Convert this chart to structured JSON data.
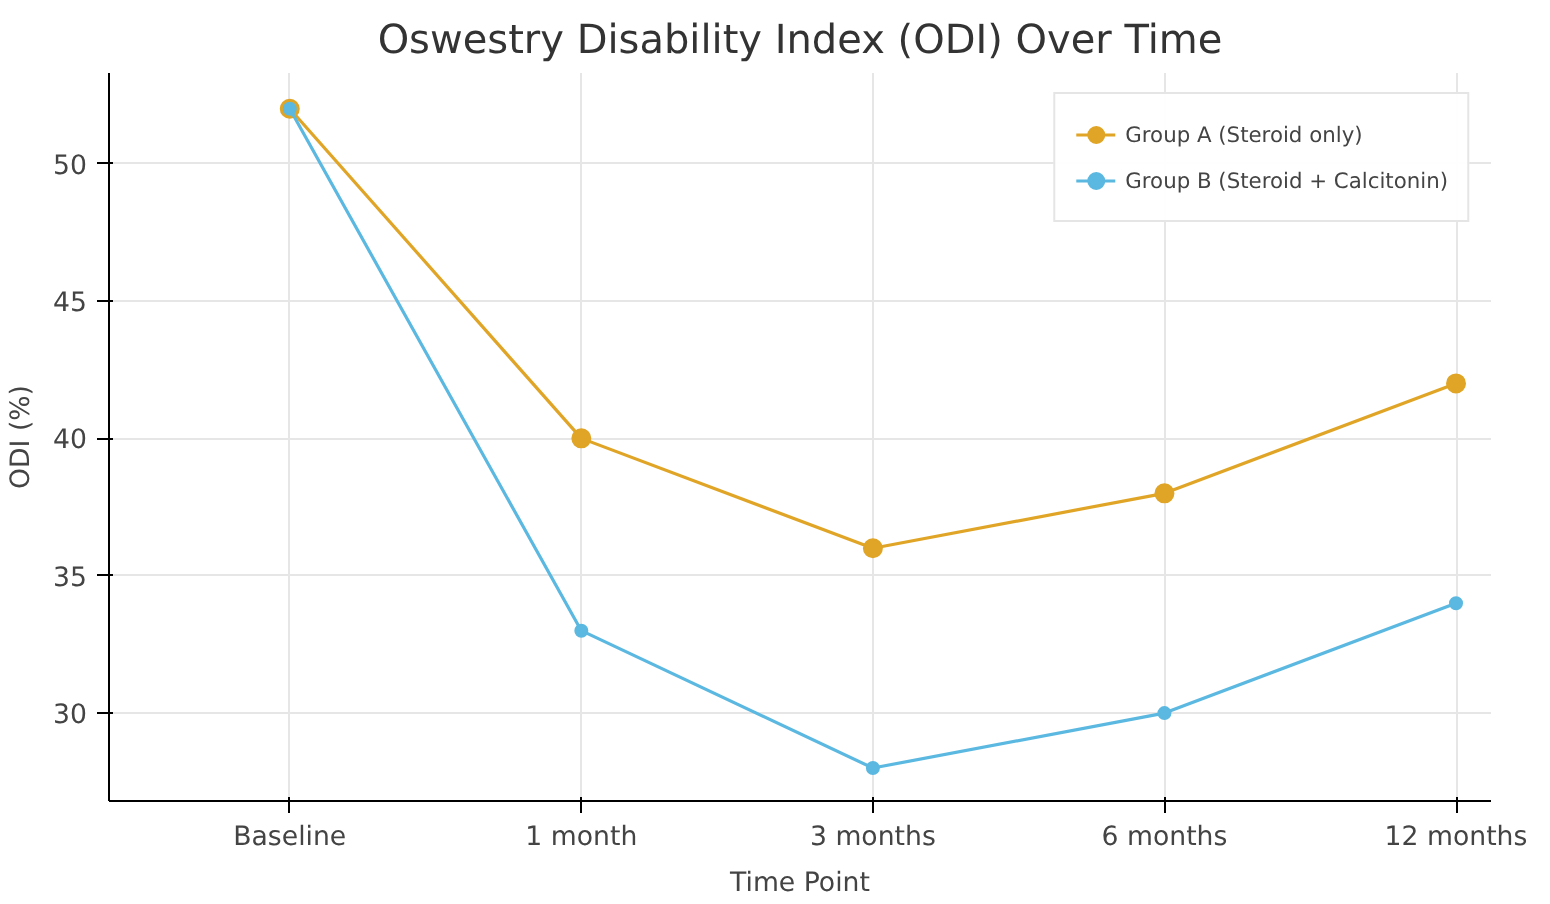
{
  "chart_data": {
    "type": "line",
    "title": "Oswestry Disability Index (ODI) Over Time",
    "xlabel": "Time Point",
    "ylabel": "ODI (%)",
    "categories": [
      "Baseline",
      "1 month",
      "3 months",
      "6 months",
      "12 months"
    ],
    "series": [
      {
        "name": "Group A (Steroid only)",
        "color": "#e0a526",
        "values": [
          52,
          40,
          36,
          38,
          42
        ]
      },
      {
        "name": "Group B (Steroid + Calcitonin)",
        "color": "#5bb8e0",
        "values": [
          52,
          33,
          28,
          30,
          34
        ]
      }
    ],
    "ylim": [
      26.8,
      53.3
    ],
    "yticks": [
      30,
      35,
      40,
      45,
      50
    ],
    "grid": true,
    "legend": "top right",
    "marker": "circle",
    "line_style": "solid"
  }
}
